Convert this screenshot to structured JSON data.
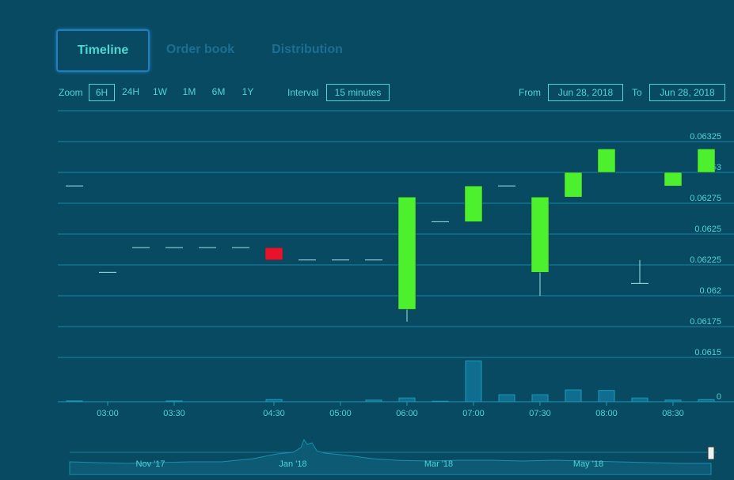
{
  "tabs": [
    "Timeline",
    "Order book",
    "Distribution"
  ],
  "controls": {
    "zoom_label": "Zoom",
    "zoom_options": [
      "6H",
      "24H",
      "1W",
      "1M",
      "6M",
      "1Y"
    ],
    "interval_label": "Interval",
    "interval": "15 minutes",
    "from_label": "From",
    "from": "Jun 28, 2018",
    "to_label": "To",
    "to": "Jun 28, 2018"
  },
  "navigator_labels": [
    "Nov '17",
    "Jan '18",
    "Mar '18",
    "May '18"
  ],
  "chart_data": {
    "type": "candlestick",
    "categories": [
      null,
      "03:00",
      null,
      "03:30",
      null,
      null,
      "04:30",
      null,
      "05:00",
      null,
      "06:00",
      null,
      "07:00",
      null,
      "07:30",
      null,
      "08:00",
      null,
      "08:30",
      null
    ],
    "series": [
      {
        "name": "open",
        "values": [
          0.06289,
          0.06219,
          0.06239,
          0.06239,
          0.06239,
          0.06239,
          0.06239,
          0.06229,
          0.06229,
          0.06229,
          0.06189,
          0.0626,
          0.0626,
          0.06289,
          0.06219,
          0.0628,
          0.063,
          0.0621,
          0.06289,
          0.063
        ]
      },
      {
        "name": "high",
        "values": [
          0.06289,
          0.06219,
          0.06239,
          0.06239,
          0.06239,
          0.06239,
          0.06239,
          0.06229,
          0.06229,
          0.06229,
          0.0628,
          0.0626,
          0.06289,
          0.06289,
          0.0628,
          0.063,
          0.06319,
          0.06229,
          0.063,
          0.06319
        ]
      },
      {
        "name": "low",
        "values": [
          0.06289,
          0.06219,
          0.06239,
          0.06239,
          0.06239,
          0.06239,
          0.06229,
          0.06229,
          0.06229,
          0.06229,
          0.06179,
          0.0626,
          0.0626,
          0.06289,
          0.062,
          0.0628,
          0.063,
          0.0621,
          0.06289,
          0.063
        ]
      },
      {
        "name": "close",
        "values": [
          0.06289,
          0.06219,
          0.06239,
          0.06239,
          0.06239,
          0.06239,
          0.06229,
          0.06229,
          0.06229,
          0.06229,
          0.0628,
          0.0626,
          0.06289,
          0.06289,
          0.0628,
          0.063,
          0.06319,
          0.0621,
          0.063,
          0.06319
        ]
      },
      {
        "name": "volume",
        "axis": "y2",
        "values": [
          0.15,
          0,
          0,
          0.15,
          0,
          0,
          0.4,
          0,
          0,
          0.3,
          0.7,
          0.1,
          7.6,
          1.3,
          1.3,
          2.2,
          2.1,
          0.7,
          0.3,
          0.4
        ]
      }
    ],
    "up_color": "#4cf02c",
    "down_color": "#e8132b",
    "flat_color": "#9fe3e3",
    "volume_color": "#0f6e8f",
    "ylim": [
      0.0615,
      0.0635
    ],
    "yticks": [
      0.0615,
      0.06175,
      0.062,
      0.06225,
      0.0625,
      0.06275,
      0.063,
      0.06325
    ],
    "y2lim": [
      0,
      10
    ],
    "y2ticks": [
      0
    ],
    "grid": true
  }
}
